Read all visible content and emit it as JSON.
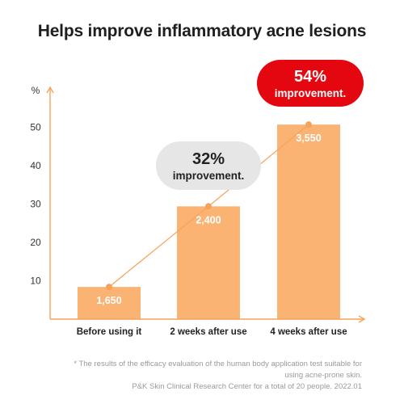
{
  "title": "Helps improve inflammatory acne lesions",
  "colors": {
    "bar": "#fbb374",
    "axis": "#f6a25a",
    "trend": "#f6a25a",
    "bubble_gray": "#e6e6e6",
    "bubble_red": "#e4070f"
  },
  "chart_data": {
    "type": "bar",
    "ylabel": "%",
    "ylim": [
      0,
      60
    ],
    "yticks": [
      10,
      20,
      30,
      40,
      50
    ],
    "categories": [
      "Before using it",
      "2 weeks after use",
      "4 weeks after use"
    ],
    "values": [
      8.4,
      29.4,
      50.7
    ],
    "data_labels": [
      "1,650",
      "2,400",
      "3,550"
    ],
    "trend_line": true,
    "annotations": [
      {
        "target_index": 1,
        "value": "32%",
        "text": "improvement.",
        "style": "gray"
      },
      {
        "target_index": 2,
        "value": "54%",
        "text": "improvement.",
        "style": "red"
      }
    ],
    "grid": false,
    "legend": "none"
  },
  "footnote": {
    "line1": "* The results of the efficacy evaluation of the human body application test suitable for",
    "line2": "using acne-prone skin.",
    "line3": "P&K Skin Clinical Research Center for a total of 20 people. 2022.01"
  }
}
